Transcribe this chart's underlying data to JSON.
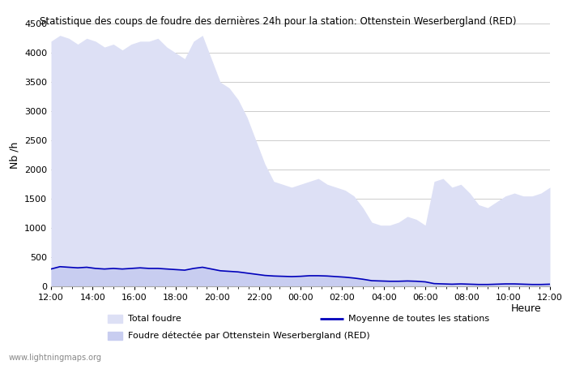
{
  "title": "Statistique des coups de foudre des dernières 24h pour la station: Ottenstein Weserbergland (RED)",
  "xlabel": "Heure",
  "ylabel": "Nb /h",
  "ylim": [
    0,
    4500
  ],
  "yticks": [
    0,
    500,
    1000,
    1500,
    2000,
    2500,
    3000,
    3500,
    4000,
    4500
  ],
  "x_labels": [
    "12:00",
    "14:00",
    "16:00",
    "18:00",
    "20:00",
    "22:00",
    "00:00",
    "02:00",
    "04:00",
    "06:00",
    "08:00",
    "10:00",
    "12:00"
  ],
  "background_color": "#ffffff",
  "grid_color": "#cccccc",
  "fill_total_color": "#dde0f5",
  "fill_station_color": "#c8cdf0",
  "line_color": "#0000bb",
  "watermark": "www.lightningmaps.org",
  "legend_total": "Total foudre",
  "legend_station": "Foudre détectée par Ottenstein Weserbergland (RED)",
  "legend_moyenne": "Moyenne de toutes les stations",
  "total_foudre": [
    4200,
    4300,
    4250,
    4150,
    4250,
    4200,
    4100,
    4150,
    4050,
    4150,
    4200,
    4200,
    4250,
    4100,
    4000,
    3900,
    4200,
    4300,
    3900,
    3500,
    3400,
    3200,
    2900,
    2500,
    2100,
    1800,
    1750,
    1700,
    1750,
    1800,
    1850,
    1750,
    1700,
    1650,
    1550,
    1350,
    1100,
    1050,
    1050,
    1100,
    1200,
    1150,
    1050,
    1800,
    1850,
    1700,
    1750,
    1600,
    1400,
    1350,
    1450,
    1550,
    1600,
    1550,
    1550,
    1600,
    1700
  ],
  "station_foudre": [
    300,
    340,
    330,
    320,
    330,
    310,
    300,
    310,
    300,
    310,
    320,
    310,
    310,
    300,
    290,
    280,
    310,
    330,
    300,
    270,
    260,
    250,
    230,
    210,
    190,
    180,
    175,
    170,
    175,
    185,
    185,
    180,
    170,
    160,
    145,
    125,
    100,
    95,
    90,
    90,
    95,
    90,
    80,
    50,
    45,
    40,
    45,
    40,
    35,
    35,
    40,
    45,
    45,
    40,
    35,
    35,
    40
  ],
  "moyenne": [
    300,
    340,
    330,
    320,
    330,
    310,
    300,
    310,
    300,
    310,
    320,
    310,
    310,
    300,
    290,
    280,
    310,
    330,
    300,
    270,
    260,
    250,
    230,
    210,
    190,
    180,
    175,
    170,
    175,
    185,
    185,
    180,
    170,
    160,
    145,
    125,
    100,
    95,
    90,
    90,
    95,
    90,
    80,
    50,
    45,
    40,
    45,
    40,
    35,
    35,
    40,
    45,
    45,
    40,
    35,
    35,
    40
  ]
}
